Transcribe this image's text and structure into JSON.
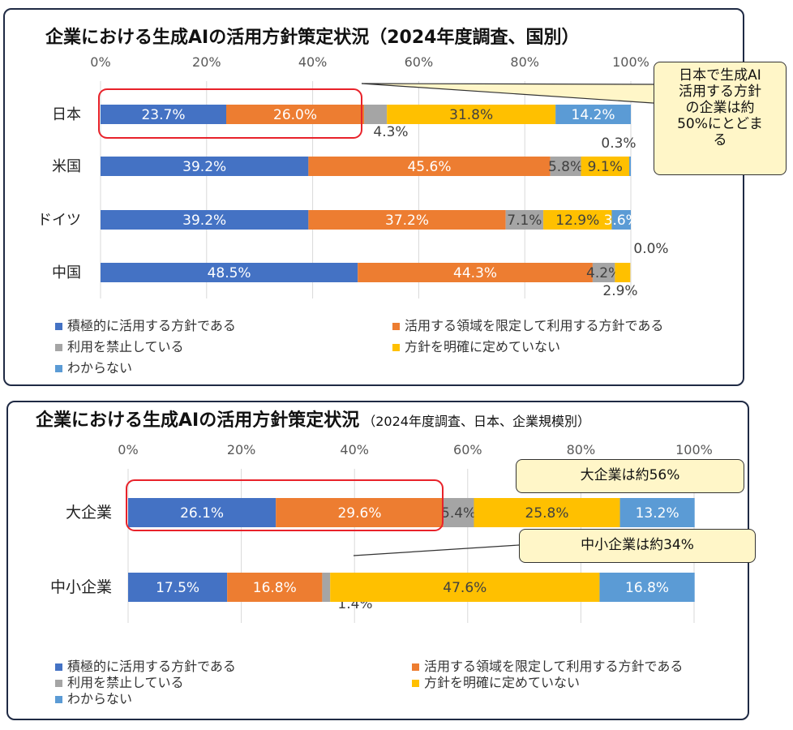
{
  "panels": [
    {
      "title": "企業における生成AIの活用方針策定状況（2024年度調査、国別）",
      "subtitle": "",
      "callouts": [
        "日本で生成AI活用する方針の企業は約50%にとどまる"
      ]
    },
    {
      "title": "企業における生成AIの活用方針策定状況",
      "subtitle": "（2024年度調査、日本、企業規模別）",
      "callouts": [
        "大企業は約56%",
        "中小企業は約34%"
      ]
    }
  ],
  "legend": [
    "積極的に活用する方針である",
    "活用する領域を限定して利用する方針である",
    "利用を禁止している",
    "方針を明確に定めていない",
    "わからない"
  ],
  "colors": [
    "#4472c4",
    "#ed7d31",
    "#a5a5a5",
    "#ffc000",
    "#5b9bd5"
  ],
  "chart_data": [
    {
      "type": "bar",
      "orientation": "horizontal",
      "stacked": true,
      "title": "企業における生成AIの活用方針策定状況（2024年度調査、国別）",
      "categories": [
        "日本",
        "米国",
        "ドイツ",
        "中国"
      ],
      "xlim": [
        0,
        100
      ],
      "ticks": [
        "0%",
        "20%",
        "40%",
        "60%",
        "80%",
        "100%"
      ],
      "series": [
        {
          "name": "積極的に活用する方針である",
          "values": [
            23.7,
            39.2,
            39.2,
            48.5
          ]
        },
        {
          "name": "活用する領域を限定して利用する方針である",
          "values": [
            26.0,
            45.6,
            37.2,
            44.3
          ]
        },
        {
          "name": "利用を禁止している",
          "values": [
            4.3,
            5.8,
            7.1,
            4.2
          ]
        },
        {
          "name": "方針を明確に定めていない",
          "values": [
            31.8,
            9.1,
            12.9,
            2.9
          ]
        },
        {
          "name": "わからない",
          "values": [
            14.2,
            0.3,
            3.6,
            0.0
          ]
        }
      ],
      "labels": [
        [
          "23.7%",
          "26.0%",
          "4.3%",
          "31.8%",
          "14.2%"
        ],
        [
          "39.2%",
          "45.6%",
          "5.8%",
          "9.1%",
          "0.3%"
        ],
        [
          "39.2%",
          "37.2%",
          "7.1%",
          "12.9%",
          "3.6%"
        ],
        [
          "48.5%",
          "44.3%",
          "4.2%",
          "2.9%",
          "0.0%"
        ]
      ],
      "grid": true,
      "legend_position": "bottom"
    },
    {
      "type": "bar",
      "orientation": "horizontal",
      "stacked": true,
      "title": "企業における生成AIの活用方針策定状況",
      "subtitle": "（2024年度調査、日本、企業規模別）",
      "categories": [
        "大企業",
        "中小企業"
      ],
      "xlim": [
        0,
        100
      ],
      "ticks": [
        "0%",
        "20%",
        "40%",
        "60%",
        "80%",
        "100%"
      ],
      "series": [
        {
          "name": "積極的に活用する方針である",
          "values": [
            26.1,
            17.5
          ]
        },
        {
          "name": "活用する領域を限定して利用する方針である",
          "values": [
            29.6,
            16.8
          ]
        },
        {
          "name": "利用を禁止している",
          "values": [
            5.4,
            1.4
          ]
        },
        {
          "name": "方針を明確に定めていない",
          "values": [
            25.8,
            47.6
          ]
        },
        {
          "name": "わからない",
          "values": [
            13.2,
            16.8
          ]
        }
      ],
      "labels": [
        [
          "26.1%",
          "29.6%",
          "5.4%",
          "25.8%",
          "13.2%"
        ],
        [
          "17.5%",
          "16.8%",
          "1.4%",
          "47.6%",
          "16.8%"
        ]
      ],
      "grid": true,
      "legend_position": "bottom"
    }
  ]
}
